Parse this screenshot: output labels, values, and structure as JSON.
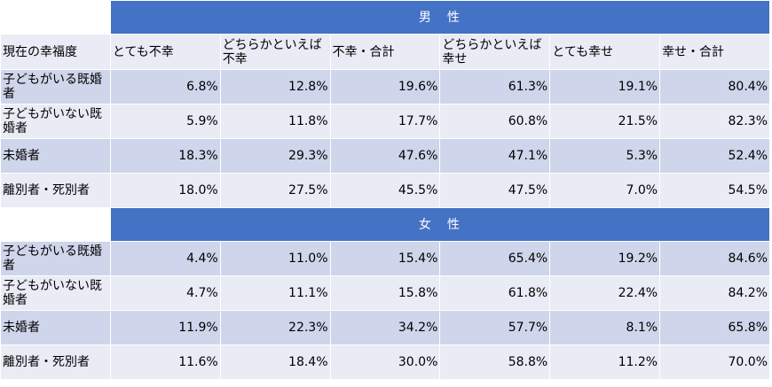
{
  "column_headers": [
    "現在の幸福度",
    "とても不幸",
    "どちらかといえば不幸",
    "不幸・合計",
    "どちらかといえば幸せ",
    "とても幸せ",
    "幸せ・合計"
  ],
  "sections": [
    {
      "title": "男　性",
      "rows": [
        {
          "label": "子どもがいる既婚者",
          "values": [
            "6.8%",
            "12.8%",
            "19.6%",
            "61.3%",
            "19.1%",
            "80.4%"
          ]
        },
        {
          "label": "子どもがいない既婚者",
          "values": [
            "5.9%",
            "11.8%",
            "17.7%",
            "60.8%",
            "21.5%",
            "82.3%"
          ]
        },
        {
          "label": "未婚者",
          "values": [
            "18.3%",
            "29.3%",
            "47.6%",
            "47.1%",
            "5.3%",
            "52.4%"
          ]
        },
        {
          "label": "離別者・死別者",
          "values": [
            "18.0%",
            "27.5%",
            "45.5%",
            "47.5%",
            "7.0%",
            "54.5%"
          ]
        }
      ]
    },
    {
      "title": "女　性",
      "rows": [
        {
          "label": "子どもがいる既婚者",
          "values": [
            "4.4%",
            "11.0%",
            "15.4%",
            "65.4%",
            "19.2%",
            "84.6%"
          ]
        },
        {
          "label": "子どもがいない既婚者",
          "values": [
            "4.7%",
            "11.1%",
            "15.8%",
            "61.8%",
            "22.4%",
            "84.2%"
          ]
        },
        {
          "label": "未婚者",
          "values": [
            "11.9%",
            "22.3%",
            "34.2%",
            "57.7%",
            "8.1%",
            "65.8%"
          ]
        },
        {
          "label": "離別者・死別者",
          "values": [
            "11.6%",
            "18.4%",
            "30.0%",
            "58.8%",
            "11.2%",
            "70.0%"
          ]
        }
      ]
    }
  ]
}
